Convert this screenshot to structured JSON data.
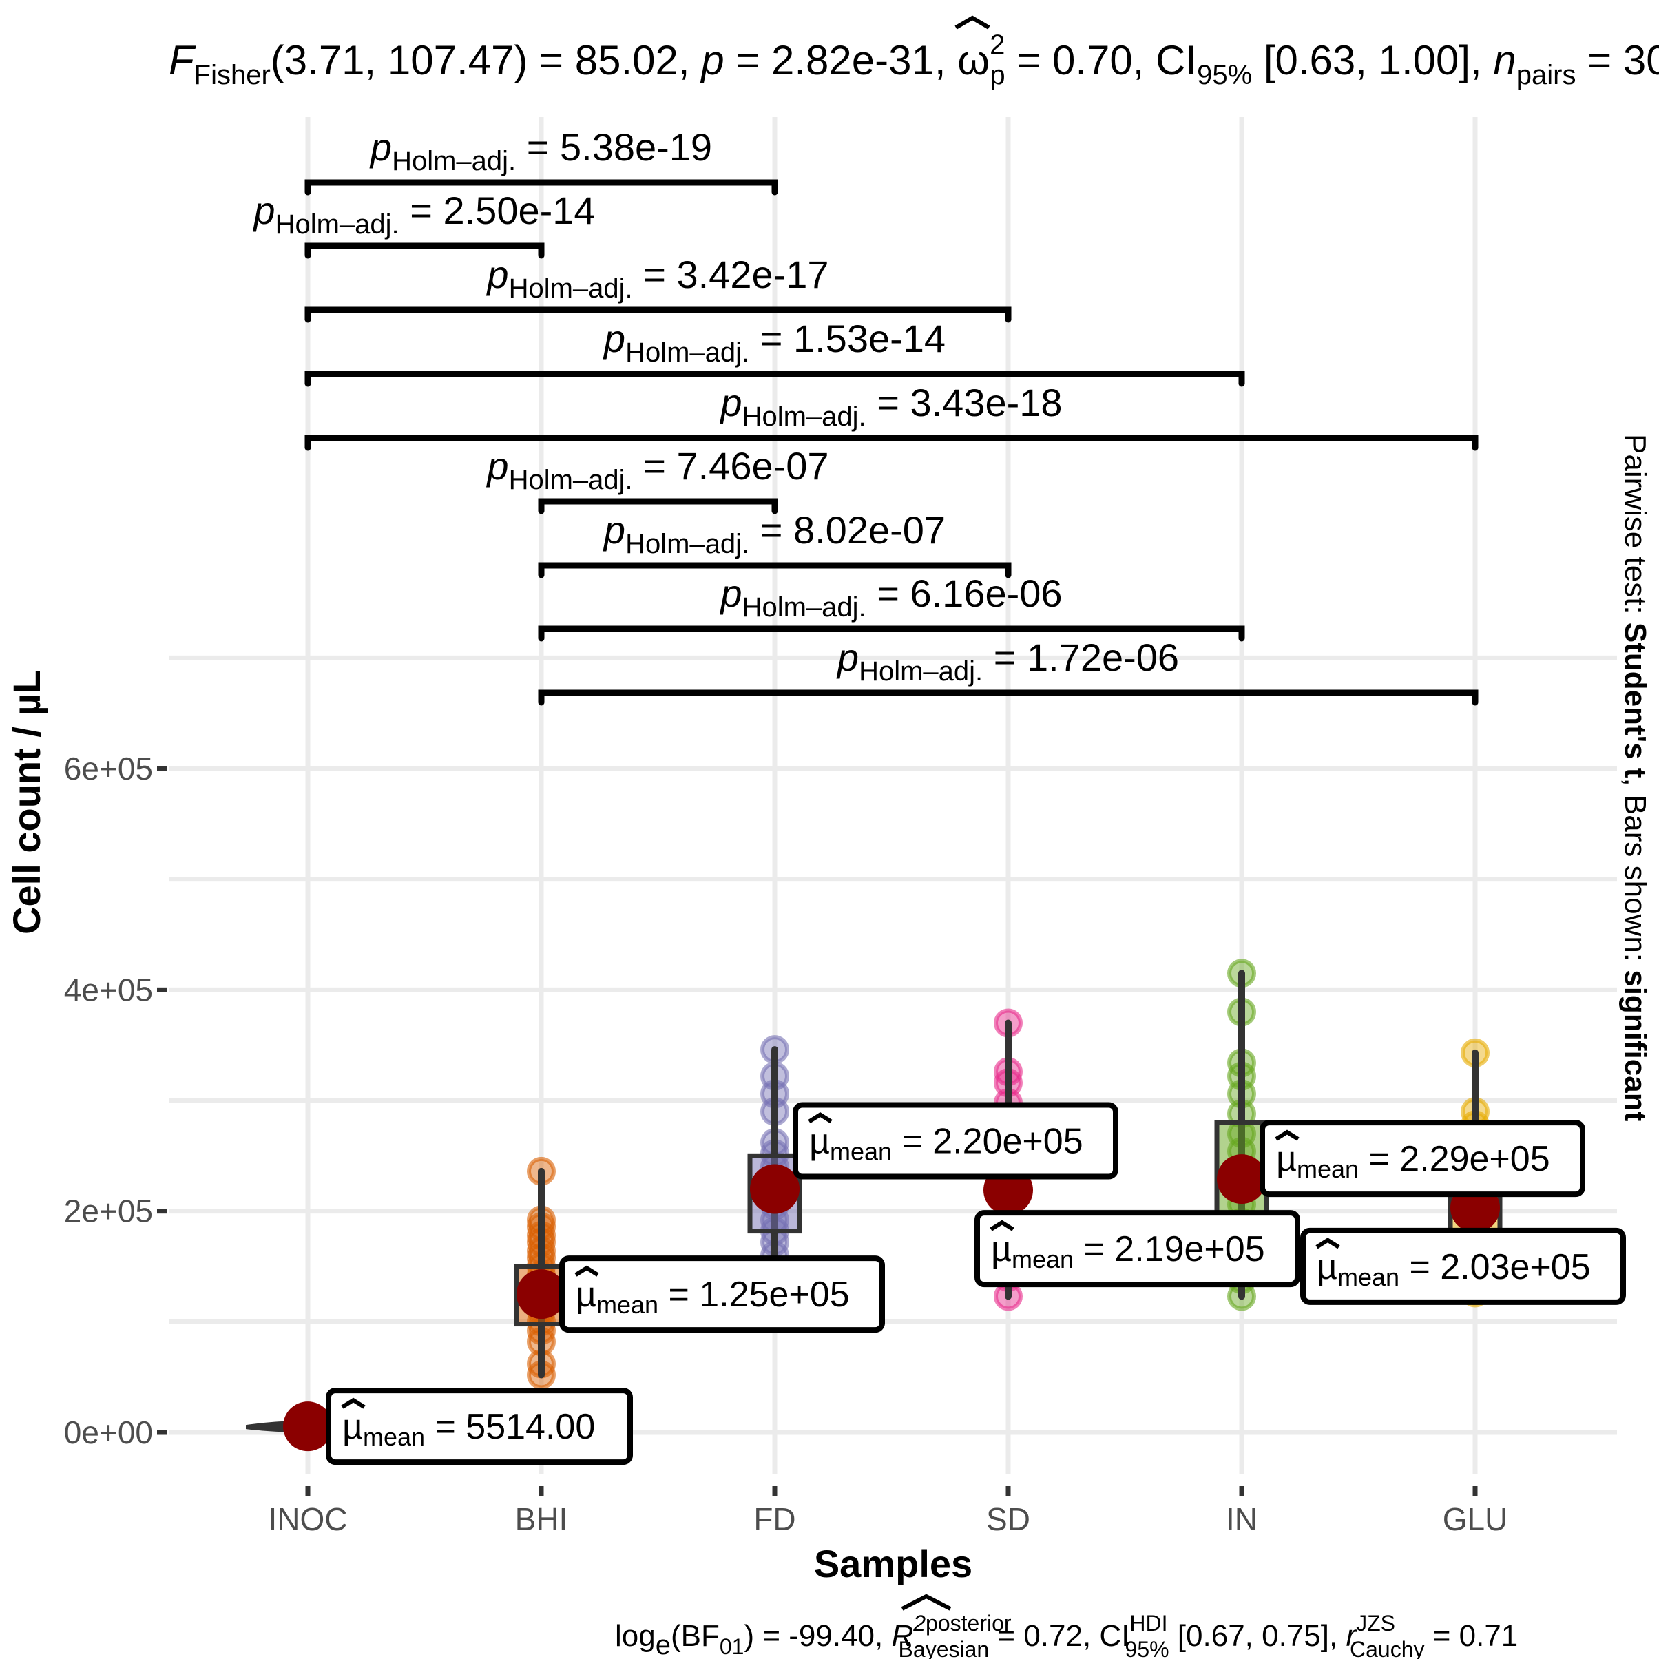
{
  "chart_data": {
    "type": "box-violin-scatter",
    "xlabel": "Samples",
    "ylabel": "Cell count / µL",
    "ylim": [
      -90000,
      780000
    ],
    "y_ticks": [
      {
        "value": 0,
        "label": "0e+00"
      },
      {
        "value": 200000,
        "label": "2e+05"
      },
      {
        "value": 400000,
        "label": "4e+05"
      },
      {
        "value": 600000,
        "label": "6e+05"
      }
    ],
    "categories": [
      "INOC",
      "BHI",
      "FD",
      "SD",
      "IN",
      "GLU"
    ],
    "colors": [
      "#333333",
      "#d95f02",
      "#7570b3",
      "#e7298a",
      "#66a61e",
      "#e6ab02"
    ],
    "groups": [
      {
        "name": "INOC",
        "mean": 5514,
        "mean_label": "5514.00",
        "q1": null,
        "q3": null,
        "min": 0,
        "max": 9000,
        "points": []
      },
      {
        "name": "BHI",
        "mean": 125000,
        "mean_label": "1.25e+05",
        "q1": 98000,
        "q3": 150000,
        "min": 52000,
        "max": 236000,
        "points": [
          52000,
          62000,
          82000,
          92000,
          100000,
          110000,
          118000,
          126000,
          134000,
          142000,
          150000,
          158000,
          164000,
          172000,
          178000,
          186000,
          192000,
          236000
        ]
      },
      {
        "name": "FD",
        "mean": 220000,
        "mean_label": "2.20e+05",
        "q1": 182000,
        "q3": 250000,
        "min": 148000,
        "max": 346000,
        "points": [
          148000,
          160000,
          172000,
          182000,
          192000,
          205000,
          216000,
          228000,
          240000,
          252000,
          262000,
          290000,
          306000,
          322000,
          346000
        ]
      },
      {
        "name": "SD",
        "mean": 219000,
        "mean_label": "2.19e+05",
        "q1": null,
        "q3": null,
        "min": 123000,
        "max": 370000,
        "points": [
          123000,
          140000,
          156000,
          170000,
          184000,
          200000,
          216000,
          232000,
          248000,
          264000,
          280000,
          298000,
          316000,
          326000,
          370000
        ]
      },
      {
        "name": "IN",
        "mean": 229000,
        "mean_label": "2.29e+05",
        "q1": 155000,
        "q3": 280000,
        "min": 123000,
        "max": 415000,
        "points": [
          123000,
          138000,
          150000,
          162000,
          176000,
          190000,
          206000,
          222000,
          238000,
          254000,
          270000,
          288000,
          306000,
          322000,
          334000,
          380000,
          415000
        ]
      },
      {
        "name": "GLU",
        "mean": 203000,
        "mean_label": "2.03e+05",
        "q1": 170000,
        "q3": 235000,
        "min": 126000,
        "max": 343000,
        "points": [
          126000,
          140000,
          154000,
          170000,
          184000,
          200000,
          214000,
          230000,
          246000,
          262000,
          278000,
          290000,
          343000
        ]
      }
    ],
    "pairwise": [
      {
        "from": "INOC",
        "to": "FD",
        "p": "5.38e-19"
      },
      {
        "from": "INOC",
        "to": "BHI",
        "p": "2.50e-14"
      },
      {
        "from": "INOC",
        "to": "SD",
        "p": "3.42e-17"
      },
      {
        "from": "INOC",
        "to": "IN",
        "p": "1.53e-14"
      },
      {
        "from": "INOC",
        "to": "GLU",
        "p": "3.43e-18"
      },
      {
        "from": "BHI",
        "to": "FD",
        "p": "7.46e-07"
      },
      {
        "from": "BHI",
        "to": "SD",
        "p": "8.02e-07"
      },
      {
        "from": "BHI",
        "to": "IN",
        "p": "6.16e-06"
      },
      {
        "from": "BHI",
        "to": "GLU",
        "p": "1.72e-06"
      }
    ],
    "p_symbol": "p",
    "p_subscript": "Holm–adj.",
    "mean_symbol": "µ",
    "mean_subscript": "mean"
  },
  "subtitle": {
    "f_name": "F",
    "f_sub": "Fisher",
    "f_args": "(3.71, 107.47) = 85.02, ",
    "p_part": "p",
    "p_value": " = 2.82e-31, ",
    "omega": "ω",
    "omega_sup": "2",
    "omega_sub": "p",
    "omega_value": " = 0.70, CI",
    "ci_sub": "95%",
    "ci_value": " [0.63, 1.00], ",
    "n_name": "n",
    "n_sub": "pairs",
    "n_value": " = 30"
  },
  "caption": {
    "log_text": "log",
    "log_sub": "e",
    "bf_text": "(BF",
    "bf_sub": "01",
    "bf_value": ") = -99.40, ",
    "r_name": "R",
    "r_sup": "2",
    "r_sup_label": "posterior",
    "r_sub_label": "Bayesian",
    "r_value": " = 0.72, CI",
    "ci_sup": "HDI",
    "ci_sub": "95%",
    "ci_value": " [0.67, 0.75], ",
    "rc_name": "r",
    "rc_sup": "JZS",
    "rc_sub": "Cauchy",
    "rc_value": " = 0.71"
  },
  "side_note": {
    "prefix": "Pairwise test: ",
    "test": "Student's t",
    "middle": ", Bars shown: ",
    "shown": "significant"
  }
}
